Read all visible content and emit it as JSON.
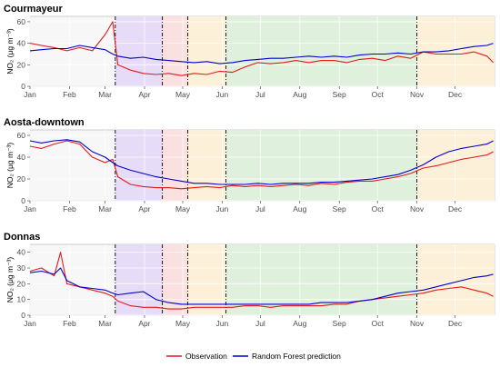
{
  "chart_data": [
    {
      "type": "line",
      "title": "Courmayeur",
      "ylabel": "NO₂ (μg m⁻³)",
      "ylim": [
        0,
        65
      ],
      "yticks": [
        0,
        20,
        40,
        60
      ],
      "x_months": [
        "Jan",
        "Feb",
        "Mar",
        "Apr",
        "May",
        "Jun",
        "Jul",
        "Aug",
        "Sep",
        "Oct",
        "Nov",
        "Dec"
      ],
      "series": [
        {
          "name": "Observation",
          "color": "#e41a1c",
          "x": [
            1,
            10,
            20,
            30,
            40,
            50,
            60,
            66,
            70,
            80,
            90,
            100,
            110,
            120,
            130,
            140,
            150,
            160,
            170,
            180,
            190,
            200,
            210,
            220,
            230,
            240,
            250,
            260,
            270,
            280,
            290,
            300,
            310,
            320,
            330,
            340,
            350,
            360,
            365
          ],
          "y": [
            40,
            38,
            36,
            33,
            36,
            33,
            48,
            60,
            20,
            15,
            12,
            11,
            12,
            10,
            12,
            11,
            14,
            13,
            18,
            22,
            21,
            22,
            24,
            22,
            24,
            24,
            22,
            25,
            26,
            24,
            28,
            26,
            32,
            30,
            30,
            30,
            32,
            28,
            22
          ]
        },
        {
          "name": "Random Forest prediction",
          "color": "#0000cc",
          "x": [
            1,
            10,
            20,
            30,
            40,
            50,
            60,
            66,
            70,
            80,
            90,
            100,
            110,
            120,
            130,
            140,
            150,
            160,
            170,
            180,
            190,
            200,
            210,
            220,
            230,
            240,
            250,
            260,
            270,
            280,
            290,
            300,
            310,
            320,
            330,
            340,
            350,
            360,
            365
          ],
          "y": [
            33,
            34,
            35,
            35,
            38,
            36,
            34,
            30,
            28,
            26,
            27,
            25,
            24,
            23,
            22,
            23,
            21,
            22,
            24,
            25,
            26,
            26,
            27,
            28,
            27,
            28,
            27,
            29,
            30,
            30,
            31,
            30,
            32,
            32,
            33,
            35,
            37,
            38,
            40
          ]
        }
      ]
    },
    {
      "type": "line",
      "title": "Aosta-downtown",
      "ylabel": "NO₂ (μg m⁻³)",
      "ylim": [
        0,
        65
      ],
      "yticks": [
        0,
        20,
        40,
        60
      ],
      "x_months": [
        "Jan",
        "Feb",
        "Mar",
        "Apr",
        "May",
        "Jun",
        "Jul",
        "Aug",
        "Sep",
        "Oct",
        "Nov",
        "Dec"
      ],
      "series": [
        {
          "name": "Observation",
          "color": "#e41a1c",
          "x": [
            1,
            10,
            20,
            30,
            40,
            50,
            60,
            66,
            70,
            80,
            90,
            100,
            110,
            120,
            130,
            140,
            150,
            160,
            170,
            180,
            190,
            200,
            210,
            220,
            230,
            240,
            250,
            260,
            270,
            280,
            290,
            300,
            310,
            320,
            330,
            340,
            350,
            360,
            365
          ],
          "y": [
            50,
            48,
            52,
            55,
            52,
            40,
            35,
            38,
            22,
            15,
            13,
            12,
            12,
            11,
            12,
            13,
            12,
            14,
            13,
            14,
            13,
            14,
            15,
            14,
            16,
            15,
            17,
            18,
            18,
            20,
            22,
            25,
            30,
            32,
            35,
            38,
            40,
            42,
            45
          ]
        },
        {
          "name": "Random Forest prediction",
          "color": "#0000cc",
          "x": [
            1,
            10,
            20,
            30,
            40,
            50,
            60,
            66,
            70,
            80,
            90,
            100,
            110,
            120,
            130,
            140,
            150,
            160,
            170,
            180,
            190,
            200,
            210,
            220,
            230,
            240,
            250,
            260,
            270,
            280,
            290,
            300,
            310,
            320,
            330,
            340,
            350,
            360,
            365
          ],
          "y": [
            55,
            53,
            55,
            56,
            54,
            45,
            40,
            35,
            32,
            28,
            25,
            22,
            20,
            18,
            16,
            16,
            15,
            15,
            15,
            16,
            15,
            16,
            16,
            16,
            17,
            17,
            18,
            19,
            20,
            22,
            24,
            28,
            33,
            40,
            45,
            48,
            50,
            52,
            55
          ]
        }
      ]
    },
    {
      "type": "line",
      "title": "Donnas",
      "ylabel": "NO₂ (μg m⁻³)",
      "ylim": [
        0,
        45
      ],
      "yticks": [
        0,
        10,
        20,
        30,
        40
      ],
      "x_months": [
        "Jan",
        "Feb",
        "Mar",
        "Apr",
        "May",
        "Jun",
        "Jul",
        "Aug",
        "Sep",
        "Oct",
        "Nov",
        "Dec"
      ],
      "series": [
        {
          "name": "Observation",
          "color": "#e41a1c",
          "x": [
            1,
            10,
            20,
            25,
            30,
            40,
            50,
            60,
            66,
            70,
            80,
            90,
            100,
            110,
            120,
            130,
            140,
            150,
            160,
            170,
            180,
            190,
            200,
            210,
            220,
            230,
            240,
            250,
            260,
            270,
            280,
            290,
            300,
            310,
            320,
            330,
            340,
            350,
            360,
            365
          ],
          "y": [
            28,
            30,
            25,
            40,
            20,
            18,
            16,
            14,
            12,
            9,
            6,
            5,
            5,
            4,
            4,
            5,
            5,
            5,
            5,
            6,
            6,
            5,
            6,
            6,
            6,
            6,
            7,
            7,
            9,
            10,
            11,
            12,
            13,
            14,
            16,
            17,
            18,
            16,
            14,
            12
          ]
        },
        {
          "name": "Random Forest prediction",
          "color": "#0000cc",
          "x": [
            1,
            10,
            20,
            25,
            30,
            40,
            50,
            60,
            66,
            70,
            80,
            90,
            100,
            110,
            120,
            130,
            140,
            150,
            160,
            170,
            180,
            190,
            200,
            210,
            220,
            230,
            240,
            250,
            260,
            270,
            280,
            290,
            300,
            310,
            320,
            330,
            340,
            350,
            360,
            365
          ],
          "y": [
            27,
            28,
            26,
            30,
            22,
            18,
            17,
            16,
            14,
            13,
            14,
            15,
            10,
            8,
            7,
            7,
            7,
            7,
            7,
            7,
            7,
            7,
            7,
            7,
            7,
            8,
            8,
            8,
            9,
            10,
            12,
            14,
            15,
            16,
            18,
            20,
            22,
            24,
            25,
            26
          ]
        }
      ]
    }
  ],
  "periods": [
    {
      "start": 68,
      "end": 105,
      "color": "#e7dcf7"
    },
    {
      "start": 105,
      "end": 125,
      "color": "#fbe0e0"
    },
    {
      "start": 125,
      "end": 155,
      "color": "#fdf0d8"
    },
    {
      "start": 155,
      "end": 305,
      "color": "#dff1dc"
    },
    {
      "start": 305,
      "end": 366,
      "color": "#fdf0d8"
    }
  ],
  "period_lines": [
    68,
    105,
    125,
    155,
    305
  ],
  "legend": {
    "items": [
      {
        "label": "Observation",
        "color": "#e41a1c"
      },
      {
        "label": "Random Forest prediction",
        "color": "#0000cc"
      }
    ]
  }
}
